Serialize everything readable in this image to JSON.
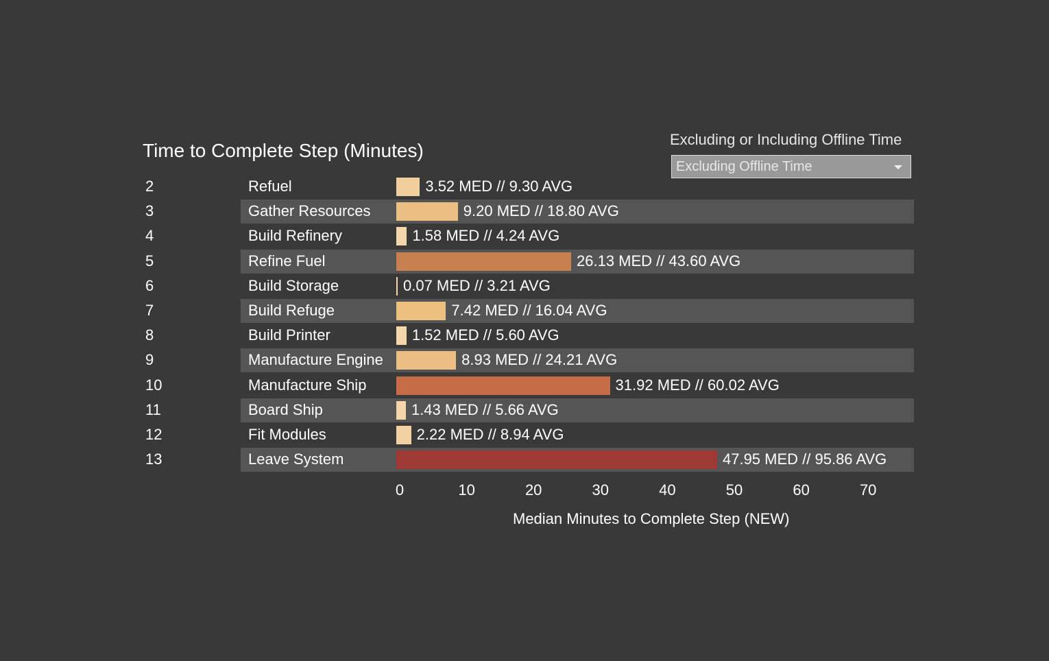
{
  "filter": {
    "label": "Excluding or Including Offline Time",
    "selected": "Excluding Offline Time"
  },
  "chart_data": {
    "type": "bar",
    "orientation": "horizontal",
    "title": "Time to Complete Step (Minutes)",
    "xlabel": "Median Minutes to Complete Step (NEW)",
    "xlim": [
      0,
      77
    ],
    "xticks": [
      0,
      10,
      20,
      30,
      40,
      50,
      60,
      70
    ],
    "rows": [
      {
        "step": "2",
        "name": "Refuel",
        "median": 3.52,
        "avg": 9.3,
        "label": "3.52 MED // 9.30 AVG",
        "color": "#f0cf9c"
      },
      {
        "step": "3",
        "name": "Gather Resources",
        "median": 9.2,
        "avg": 18.8,
        "label": "9.20 MED // 18.80 AVG",
        "color": "#ebbf82"
      },
      {
        "step": "4",
        "name": "Build Refinery",
        "median": 1.58,
        "avg": 4.24,
        "label": "1.58 MED // 4.24 AVG",
        "color": "#f3d6aa"
      },
      {
        "step": "5",
        "name": "Refine Fuel",
        "median": 26.13,
        "avg": 43.6,
        "label": "26.13 MED // 43.60 AVG",
        "color": "#c98050"
      },
      {
        "step": "6",
        "name": "Build Storage",
        "median": 0.07,
        "avg": 3.21,
        "label": "0.07 MED // 3.21 AVG",
        "color": "#f3d6aa"
      },
      {
        "step": "7",
        "name": "Build Refuge",
        "median": 7.42,
        "avg": 16.04,
        "label": "7.42 MED // 16.04 AVG",
        "color": "#ecc180"
      },
      {
        "step": "8",
        "name": "Build Printer",
        "median": 1.52,
        "avg": 5.6,
        "label": "1.52 MED // 5.60 AVG",
        "color": "#f3d6aa"
      },
      {
        "step": "9",
        "name": "Manufacture Engine",
        "median": 8.93,
        "avg": 24.21,
        "label": "8.93 MED // 24.21 AVG",
        "color": "#ebbf82"
      },
      {
        "step": "10",
        "name": "Manufacture Ship",
        "median": 31.92,
        "avg": 60.02,
        "label": "31.92 MED // 60.02 AVG",
        "color": "#c56b45"
      },
      {
        "step": "11",
        "name": "Board Ship",
        "median": 1.43,
        "avg": 5.66,
        "label": "1.43 MED // 5.66 AVG",
        "color": "#f3d6aa"
      },
      {
        "step": "12",
        "name": "Fit Modules",
        "median": 2.22,
        "avg": 8.94,
        "label": "2.22 MED // 8.94 AVG",
        "color": "#f1d1a2"
      },
      {
        "step": "13",
        "name": "Leave System",
        "median": 47.95,
        "avg": 95.86,
        "label": "47.95 MED // 95.86 AVG",
        "color": "#a03a35"
      }
    ]
  }
}
